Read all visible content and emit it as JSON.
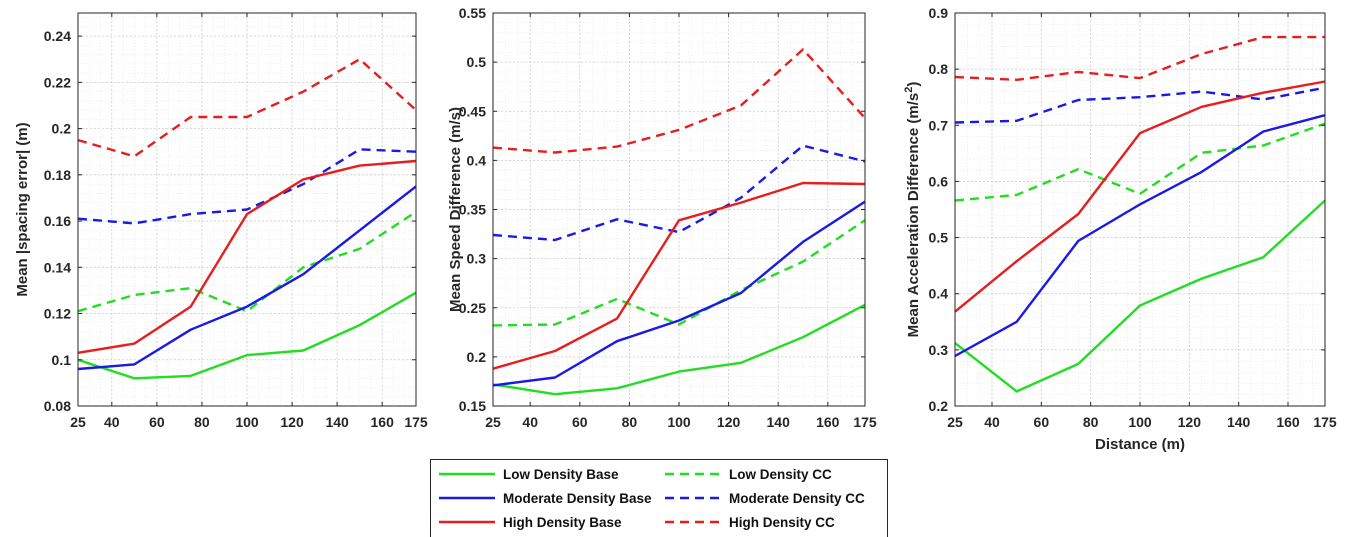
{
  "chart_data": [
    {
      "type": "line",
      "ylabel": "Mean |spacing error| (m)",
      "xlabel": "",
      "x": [
        25,
        50,
        75,
        100,
        125,
        150,
        175
      ],
      "xticks": [
        "25",
        "40",
        "60",
        "80",
        "100",
        "120",
        "140",
        "160",
        "175"
      ],
      "yticks": [
        "0.08",
        "0.1",
        "0.12",
        "0.14",
        "0.16",
        "0.18",
        "0.2",
        "0.22",
        "0.24"
      ],
      "xlim": [
        25,
        175
      ],
      "ylim": [
        0.08,
        0.25
      ],
      "grid": true,
      "series": [
        {
          "name": "Low Density Base",
          "values": [
            0.1,
            0.092,
            0.093,
            0.102,
            0.104,
            0.115,
            0.129
          ]
        },
        {
          "name": "Low Density CC",
          "values": [
            0.121,
            0.128,
            0.131,
            0.121,
            0.14,
            0.148,
            0.164
          ]
        },
        {
          "name": "Moderate Density Base",
          "values": [
            0.096,
            0.098,
            0.113,
            0.123,
            0.137,
            0.156,
            0.175
          ]
        },
        {
          "name": "Moderate Density CC",
          "values": [
            0.161,
            0.159,
            0.163,
            0.165,
            0.176,
            0.191,
            0.19
          ]
        },
        {
          "name": "High Density Base",
          "values": [
            0.103,
            0.107,
            0.123,
            0.163,
            0.178,
            0.184,
            0.186
          ]
        },
        {
          "name": "High Density CC",
          "values": [
            0.195,
            0.188,
            0.205,
            0.205,
            0.216,
            0.23,
            0.208
          ]
        }
      ]
    },
    {
      "type": "line",
      "ylabel": "Mean Speed Difference (m/s)",
      "xlabel": "",
      "x": [
        25,
        50,
        75,
        100,
        125,
        150,
        175
      ],
      "xticks": [
        "25",
        "40",
        "60",
        "80",
        "100",
        "120",
        "140",
        "160",
        "175"
      ],
      "yticks": [
        "0.15",
        "0.2",
        "0.25",
        "0.3",
        "0.35",
        "0.4",
        "0.45",
        "0.5",
        "0.55"
      ],
      "xlim": [
        25,
        175
      ],
      "ylim": [
        0.15,
        0.55
      ],
      "grid": true,
      "series": [
        {
          "name": "Low Density Base",
          "values": [
            0.172,
            0.162,
            0.168,
            0.185,
            0.194,
            0.22,
            0.253
          ]
        },
        {
          "name": "Low Density CC",
          "values": [
            0.232,
            0.233,
            0.259,
            0.233,
            0.268,
            0.297,
            0.339
          ]
        },
        {
          "name": "Moderate Density Base",
          "values": [
            0.171,
            0.179,
            0.216,
            0.237,
            0.265,
            0.317,
            0.358
          ]
        },
        {
          "name": "Moderate Density CC",
          "values": [
            0.324,
            0.319,
            0.34,
            0.327,
            0.362,
            0.415,
            0.399
          ]
        },
        {
          "name": "High Density Base",
          "values": [
            0.188,
            0.206,
            0.239,
            0.339,
            0.357,
            0.377,
            0.376
          ]
        },
        {
          "name": "High Density CC",
          "values": [
            0.413,
            0.408,
            0.414,
            0.431,
            0.456,
            0.513,
            0.443
          ]
        }
      ]
    },
    {
      "type": "line",
      "ylabel_main": "Mean Acceleration Difference (m/s",
      "ylabel_sup": "2",
      "ylabel_end": ")",
      "xlabel": "Distance (m)",
      "x": [
        25,
        50,
        75,
        100,
        125,
        150,
        175
      ],
      "xticks": [
        "25",
        "40",
        "60",
        "80",
        "100",
        "120",
        "140",
        "160",
        "175"
      ],
      "yticks": [
        "0.2",
        "0.3",
        "0.4",
        "0.5",
        "0.6",
        "0.7",
        "0.8",
        "0.9"
      ],
      "xlim": [
        25,
        175
      ],
      "ylim": [
        0.2,
        0.9
      ],
      "grid": true,
      "series": [
        {
          "name": "Low Density Base",
          "values": [
            0.312,
            0.226,
            0.275,
            0.379,
            0.427,
            0.465,
            0.566
          ]
        },
        {
          "name": "Low Density CC",
          "values": [
            0.566,
            0.576,
            0.622,
            0.578,
            0.651,
            0.664,
            0.703
          ]
        },
        {
          "name": "Moderate Density Base",
          "values": [
            0.289,
            0.35,
            0.494,
            0.559,
            0.617,
            0.689,
            0.718
          ]
        },
        {
          "name": "Moderate Density CC",
          "values": [
            0.705,
            0.708,
            0.745,
            0.75,
            0.76,
            0.746,
            0.767
          ]
        },
        {
          "name": "High Density Base",
          "values": [
            0.368,
            0.458,
            0.542,
            0.686,
            0.733,
            0.758,
            0.778
          ]
        },
        {
          "name": "High Density CC",
          "values": [
            0.786,
            0.781,
            0.795,
            0.784,
            0.827,
            0.857,
            0.857
          ]
        }
      ]
    }
  ],
  "legend": {
    "placement": "bottom-center",
    "items": [
      {
        "label": "Low Density Base",
        "color": "#22dd22",
        "dash": false
      },
      {
        "label": "Low Density CC",
        "color": "#22dd22",
        "dash": true
      },
      {
        "label": "Moderate Density Base",
        "color": "#1a1ae6",
        "dash": false
      },
      {
        "label": "Moderate Density CC",
        "color": "#1a1ae6",
        "dash": true
      },
      {
        "label": "High Density Base",
        "color": "#e61e1e",
        "dash": false
      },
      {
        "label": "High Density CC",
        "color": "#e61e1e",
        "dash": true
      }
    ]
  },
  "colors": {
    "low": "#22dd22",
    "moderate": "#1a1ae6",
    "high": "#e61e1e"
  }
}
